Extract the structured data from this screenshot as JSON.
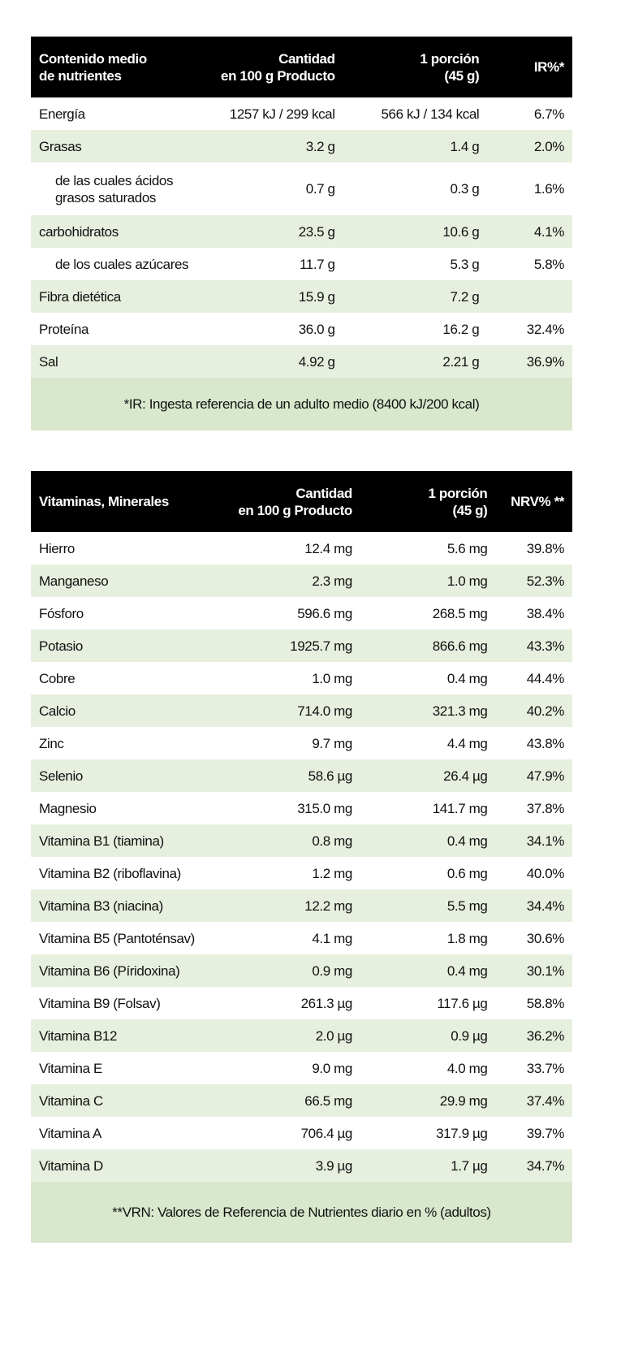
{
  "colors": {
    "header_bg": "#000000",
    "stripe": "#e7f0df",
    "footnote_bg": "#d9e7cc"
  },
  "nutrients": {
    "headers": [
      "Contenido medio\nde nutrientes",
      "Cantidad\nen 100 g Producto",
      "1 porción\n(45 g)",
      "IR%*"
    ],
    "rows": [
      {
        "name": "Energía",
        "per100": "1257 kJ / 299 kcal",
        "portion": "566 kJ / 134 kcal",
        "pct": "6.7%"
      },
      {
        "name": "Grasas",
        "per100": "3.2 g",
        "portion": "1.4 g",
        "pct": "2.0%"
      },
      {
        "name": "de las cuales ácidos grasos saturados",
        "per100": "0.7 g",
        "portion": "0.3 g",
        "pct": "1.6%",
        "indent": true
      },
      {
        "name": "carbohidratos",
        "per100": "23.5 g",
        "portion": "10.6 g",
        "pct": "4.1%"
      },
      {
        "name": "de los cuales azúcares",
        "per100": "11.7 g",
        "portion": "5.3 g",
        "pct": "5.8%",
        "indent": true
      },
      {
        "name": "Fibra dietética",
        "per100": "15.9 g",
        "portion": "7.2 g",
        "pct": ""
      },
      {
        "name": "Proteína",
        "per100": "36.0 g",
        "portion": "16.2 g",
        "pct": "32.4%"
      },
      {
        "name": "Sal",
        "per100": "4.92 g",
        "portion": "2.21 g",
        "pct": "36.9%"
      }
    ],
    "footnote": "*IR: Ingesta referencia de un adulto medio (8400 kJ/200 kcal)"
  },
  "vitamins": {
    "headers": [
      "Vitaminas, Minerales",
      "Cantidad\nen 100 g Producto",
      "1 porción\n(45 g)",
      "NRV% **"
    ],
    "rows": [
      {
        "name": "Hierro",
        "per100": "12.4 mg",
        "portion": "5.6 mg",
        "pct": "39.8%"
      },
      {
        "name": "Manganeso",
        "per100": "2.3 mg",
        "portion": "1.0 mg",
        "pct": "52.3%"
      },
      {
        "name": "Fósforo",
        "per100": "596.6 mg",
        "portion": "268.5 mg",
        "pct": "38.4%"
      },
      {
        "name": "Potasio",
        "per100": "1925.7 mg",
        "portion": "866.6 mg",
        "pct": "43.3%"
      },
      {
        "name": "Cobre",
        "per100": "1.0 mg",
        "portion": "0.4 mg",
        "pct": "44.4%"
      },
      {
        "name": "Calcio",
        "per100": "714.0 mg",
        "portion": "321.3 mg",
        "pct": "40.2%"
      },
      {
        "name": "Zinc",
        "per100": "9.7 mg",
        "portion": "4.4 mg",
        "pct": "43.8%"
      },
      {
        "name": "Selenio",
        "per100": "58.6 µg",
        "portion": "26.4 µg",
        "pct": "47.9%"
      },
      {
        "name": "Magnesio",
        "per100": "315.0 mg",
        "portion": "141.7 mg",
        "pct": "37.8%"
      },
      {
        "name": "Vitamina B1 (tiamina)",
        "per100": "0.8 mg",
        "portion": "0.4 mg",
        "pct": "34.1%"
      },
      {
        "name": "Vitamina B2 (riboflavina)",
        "per100": "1.2 mg",
        "portion": "0.6 mg",
        "pct": "40.0%"
      },
      {
        "name": "Vitamina B3 (niacina)",
        "per100": "12.2 mg",
        "portion": "5.5 mg",
        "pct": "34.4%"
      },
      {
        "name": "Vitamina B5 (Pantoténsav)",
        "per100": "4.1 mg",
        "portion": "1.8 mg",
        "pct": "30.6%"
      },
      {
        "name": "Vitamina B6 (Píridoxina)",
        "per100": "0.9 mg",
        "portion": "0.4 mg",
        "pct": "30.1%"
      },
      {
        "name": "Vitamina B9 (Folsav)",
        "per100": "261.3 µg",
        "portion": "117.6 µg",
        "pct": "58.8%"
      },
      {
        "name": "Vitamina B12",
        "per100": "2.0 µg",
        "portion": "0.9 µg",
        "pct": "36.2%"
      },
      {
        "name": "Vitamina E",
        "per100": "9.0 mg",
        "portion": "4.0 mg",
        "pct": "33.7%"
      },
      {
        "name": "Vitamina C",
        "per100": "66.5 mg",
        "portion": "29.9 mg",
        "pct": "37.4%"
      },
      {
        "name": "Vitamina A",
        "per100": "706.4 µg",
        "portion": "317.9 µg",
        "pct": "39.7%"
      },
      {
        "name": "Vitamina D",
        "per100": "3.9 µg",
        "portion": "1.7 µg",
        "pct": "34.7%"
      }
    ],
    "footnote": "**VRN: Valores de Referencia de Nutrientes diario en % (adultos)"
  }
}
